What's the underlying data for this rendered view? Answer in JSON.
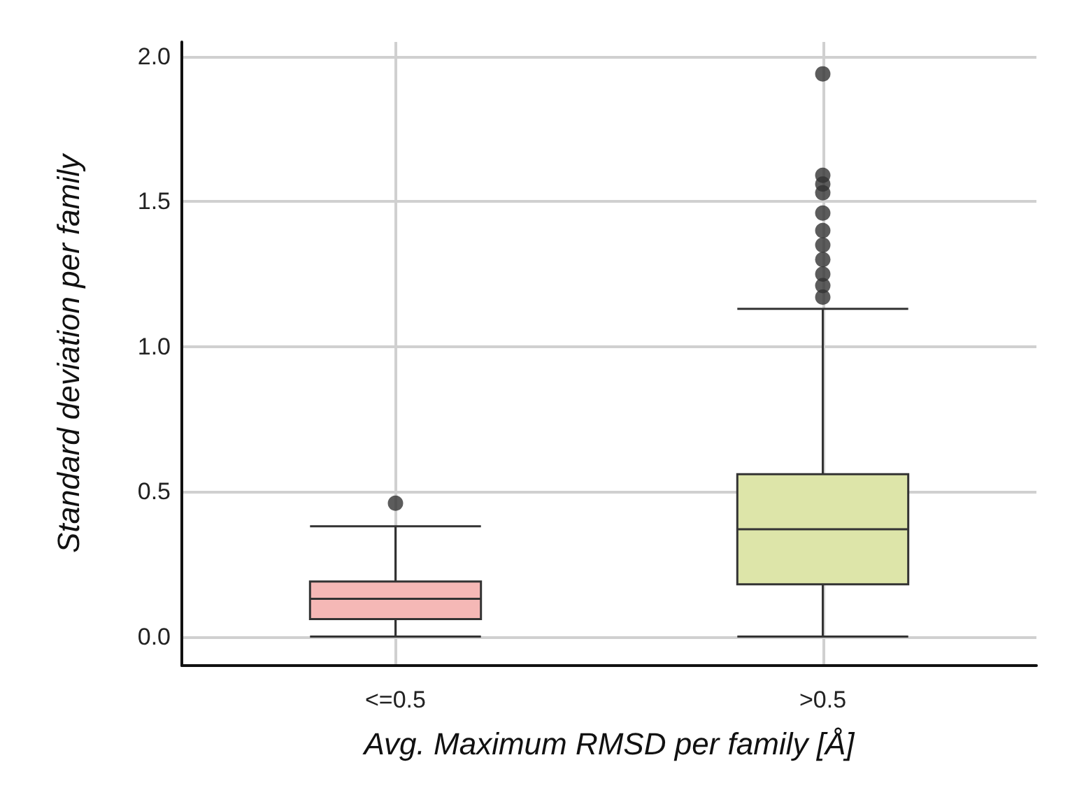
{
  "chart_data": {
    "type": "box",
    "xlabel": "Avg. Maximum RMSD per family [Å]",
    "ylabel": "Standard deviation per family",
    "categories": [
      "<=0.5",
      ">0.5"
    ],
    "colors": [
      "#f5b8b6",
      "#dde5a9"
    ],
    "boxes": [
      {
        "low": 0,
        "q1": 0.06,
        "median": 0.13,
        "q3": 0.19,
        "high": 0.38,
        "outliers": [
          0.46
        ]
      },
      {
        "low": 0,
        "q1": 0.18,
        "median": 0.37,
        "q3": 0.56,
        "high": 1.13,
        "outliers": [
          1.94,
          1.59,
          1.56,
          1.53,
          1.46,
          1.4,
          1.35,
          1.3,
          1.25,
          1.21,
          1.17
        ]
      }
    ],
    "ylim": [
      -0.1,
      2.05
    ],
    "yticks": [
      {
        "value": 0,
        "label": "0.0"
      },
      0.5,
      {
        "value": 1,
        "label": "1.0"
      },
      1.5,
      {
        "value": 2,
        "label": "2.0"
      }
    ],
    "grid": true
  }
}
